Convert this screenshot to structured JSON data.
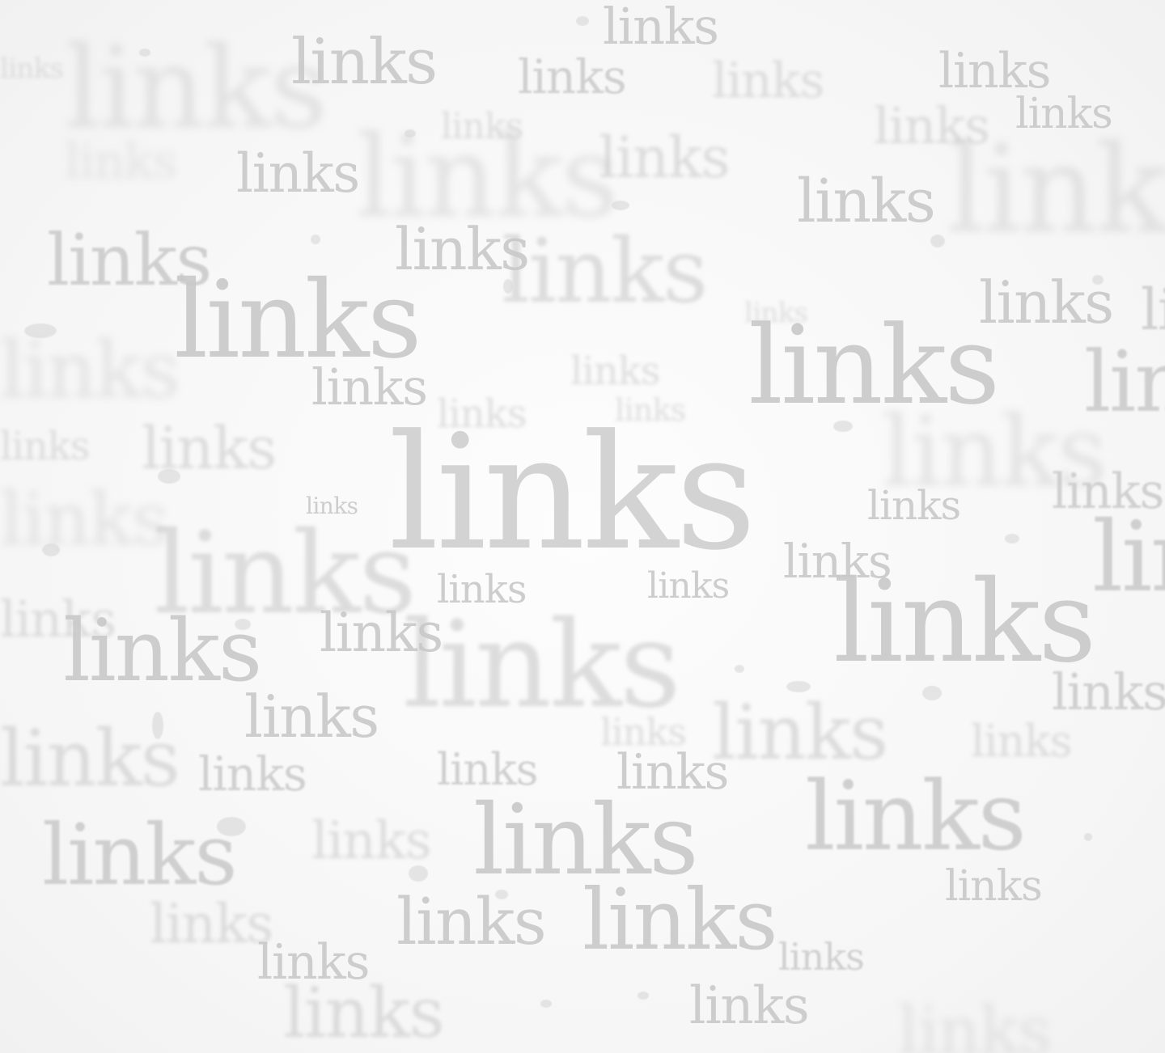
{
  "background": {
    "color": "#fbfbfb",
    "word": "links",
    "word_color": "#c9c9c9"
  }
}
